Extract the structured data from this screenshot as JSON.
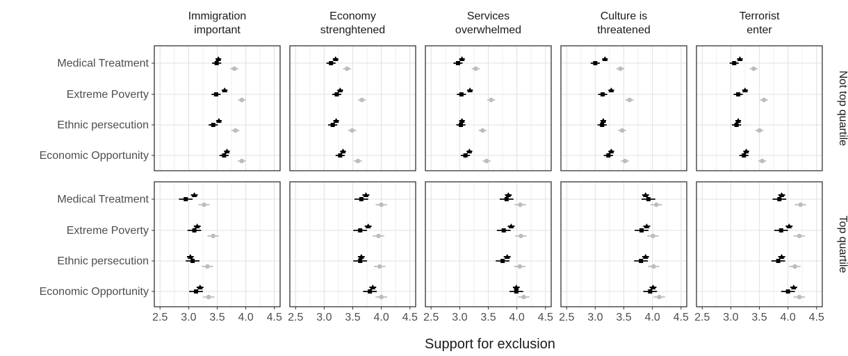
{
  "chart_data": {
    "type": "forest-dot",
    "xlabel": "Support for exclusion",
    "xlim": [
      2.4,
      4.6
    ],
    "xticks": [
      "2.5",
      "3.0",
      "3.5",
      "4.0",
      "4.5"
    ],
    "grid": true,
    "facet_columns": [
      {
        "label": "Immigration\nimportant"
      },
      {
        "label": "Economy\nstrenghtened"
      },
      {
        "label": "Services\noverwhelmed"
      },
      {
        "label": "Culture is\nthreatened"
      },
      {
        "label": "Terrorist\nenter"
      }
    ],
    "facet_rows": [
      {
        "label": "Not top quartile"
      },
      {
        "label": "Top quartile"
      }
    ],
    "categories": [
      "Medical Treatment",
      "Extreme Poverty",
      "Ethnic persecution",
      "Economic Opportunity"
    ],
    "series": [
      {
        "key": "triangle",
        "marker": "triangle",
        "color": "#000000"
      },
      {
        "key": "square",
        "marker": "square",
        "color": "#000000"
      },
      {
        "key": "circle",
        "marker": "circle",
        "color": "#bdbdbd"
      }
    ],
    "panels": [
      [
        [
          {
            "tri": [
              3.52,
              3.47,
              3.57
            ],
            "sq": [
              3.49,
              3.41,
              3.57
            ],
            "circ": [
              3.8,
              3.73,
              3.87
            ]
          },
          {
            "tri": [
              3.63,
              3.58,
              3.68
            ],
            "sq": [
              3.48,
              3.4,
              3.56
            ],
            "circ": [
              3.93,
              3.86,
              4.0
            ]
          },
          {
            "tri": [
              3.53,
              3.48,
              3.58
            ],
            "sq": [
              3.43,
              3.35,
              3.51
            ],
            "circ": [
              3.82,
              3.75,
              3.89
            ]
          },
          {
            "tri": [
              3.67,
              3.62,
              3.72
            ],
            "sq": [
              3.62,
              3.54,
              3.7
            ],
            "circ": [
              3.93,
              3.86,
              4.0
            ]
          }
        ],
        [
          {
            "tri": [
              3.2,
              3.15,
              3.25
            ],
            "sq": [
              3.12,
              3.04,
              3.2
            ],
            "circ": [
              3.4,
              3.33,
              3.47
            ]
          },
          {
            "tri": [
              3.28,
              3.23,
              3.33
            ],
            "sq": [
              3.22,
              3.14,
              3.3
            ],
            "circ": [
              3.66,
              3.59,
              3.73
            ]
          },
          {
            "tri": [
              3.21,
              3.16,
              3.26
            ],
            "sq": [
              3.15,
              3.07,
              3.23
            ],
            "circ": [
              3.49,
              3.42,
              3.56
            ]
          },
          {
            "tri": [
              3.33,
              3.28,
              3.38
            ],
            "sq": [
              3.28,
              3.2,
              3.36
            ],
            "circ": [
              3.59,
              3.52,
              3.66
            ]
          }
        ],
        [
          {
            "tri": [
              3.04,
              2.99,
              3.09
            ],
            "sq": [
              2.97,
              2.89,
              3.05
            ],
            "circ": [
              3.28,
              3.21,
              3.35
            ]
          },
          {
            "tri": [
              3.18,
              3.13,
              3.23
            ],
            "sq": [
              3.03,
              2.95,
              3.11
            ],
            "circ": [
              3.55,
              3.48,
              3.62
            ]
          },
          {
            "tri": [
              3.04,
              2.99,
              3.09
            ],
            "sq": [
              3.02,
              2.94,
              3.1
            ],
            "circ": [
              3.4,
              3.33,
              3.47
            ]
          },
          {
            "tri": [
              3.17,
              3.12,
              3.22
            ],
            "sq": [
              3.1,
              3.02,
              3.18
            ],
            "circ": [
              3.47,
              3.4,
              3.54
            ]
          }
        ],
        [
          {
            "tri": [
              3.17,
              3.12,
              3.22
            ],
            "sq": [
              3.0,
              2.92,
              3.08
            ],
            "circ": [
              3.44,
              3.37,
              3.51
            ]
          },
          {
            "tri": [
              3.28,
              3.23,
              3.33
            ],
            "sq": [
              3.13,
              3.05,
              3.21
            ],
            "circ": [
              3.6,
              3.53,
              3.67
            ]
          },
          {
            "tri": [
              3.14,
              3.09,
              3.19
            ],
            "sq": [
              3.12,
              3.04,
              3.2
            ],
            "circ": [
              3.47,
              3.4,
              3.54
            ]
          },
          {
            "tri": [
              3.28,
              3.23,
              3.33
            ],
            "sq": [
              3.23,
              3.15,
              3.31
            ],
            "circ": [
              3.52,
              3.45,
              3.59
            ]
          }
        ],
        [
          {
            "tri": [
              3.16,
              3.11,
              3.21
            ],
            "sq": [
              3.06,
              2.98,
              3.14
            ],
            "circ": [
              3.4,
              3.33,
              3.47
            ]
          },
          {
            "tri": [
              3.25,
              3.2,
              3.3
            ],
            "sq": [
              3.13,
              3.05,
              3.21
            ],
            "circ": [
              3.58,
              3.51,
              3.65
            ]
          },
          {
            "tri": [
              3.13,
              3.08,
              3.18
            ],
            "sq": [
              3.1,
              3.02,
              3.18
            ],
            "circ": [
              3.5,
              3.43,
              3.57
            ]
          },
          {
            "tri": [
              3.27,
              3.22,
              3.32
            ],
            "sq": [
              3.23,
              3.15,
              3.31
            ],
            "circ": [
              3.55,
              3.48,
              3.62
            ]
          }
        ]
      ],
      [
        [
          {
            "tri": [
              3.1,
              3.04,
              3.16
            ],
            "sq": [
              2.95,
              2.83,
              3.07
            ],
            "circ": [
              3.27,
              3.17,
              3.37
            ]
          },
          {
            "tri": [
              3.15,
              3.09,
              3.21
            ],
            "sq": [
              3.1,
              2.98,
              3.22
            ],
            "circ": [
              3.43,
              3.33,
              3.53
            ]
          },
          {
            "tri": [
              3.03,
              2.97,
              3.09
            ],
            "sq": [
              3.07,
              2.95,
              3.19
            ],
            "circ": [
              3.33,
              3.23,
              3.43
            ]
          },
          {
            "tri": [
              3.2,
              3.14,
              3.26
            ],
            "sq": [
              3.13,
              3.01,
              3.25
            ],
            "circ": [
              3.35,
              3.25,
              3.45
            ]
          }
        ],
        [
          {
            "tri": [
              3.73,
              3.67,
              3.79
            ],
            "sq": [
              3.65,
              3.53,
              3.77
            ],
            "circ": [
              4.0,
              3.9,
              4.1
            ]
          },
          {
            "tri": [
              3.77,
              3.71,
              3.83
            ],
            "sq": [
              3.63,
              3.51,
              3.75
            ],
            "circ": [
              3.95,
              3.85,
              4.05
            ]
          },
          {
            "tri": [
              3.65,
              3.59,
              3.71
            ],
            "sq": [
              3.63,
              3.51,
              3.75
            ],
            "circ": [
              3.97,
              3.87,
              4.07
            ]
          },
          {
            "tri": [
              3.85,
              3.79,
              3.91
            ],
            "sq": [
              3.8,
              3.68,
              3.92
            ],
            "circ": [
              4.0,
              3.9,
              4.1
            ]
          }
        ],
        [
          {
            "tri": [
              3.85,
              3.79,
              3.91
            ],
            "sq": [
              3.82,
              3.7,
              3.94
            ],
            "circ": [
              4.06,
              3.96,
              4.16
            ]
          },
          {
            "tri": [
              3.9,
              3.84,
              3.96
            ],
            "sq": [
              3.77,
              3.65,
              3.89
            ],
            "circ": [
              4.07,
              3.97,
              4.17
            ]
          },
          {
            "tri": [
              3.83,
              3.77,
              3.89
            ],
            "sq": [
              3.75,
              3.63,
              3.87
            ],
            "circ": [
              4.05,
              3.95,
              4.15
            ]
          },
          {
            "tri": [
              3.99,
              3.93,
              4.05
            ],
            "sq": [
              3.99,
              3.87,
              4.11
            ],
            "circ": [
              4.12,
              4.02,
              4.22
            ]
          }
        ],
        [
          {
            "tri": [
              3.88,
              3.82,
              3.94
            ],
            "sq": [
              3.93,
              3.81,
              4.05
            ],
            "circ": [
              4.07,
              3.97,
              4.17
            ]
          },
          {
            "tri": [
              3.9,
              3.84,
              3.96
            ],
            "sq": [
              3.81,
              3.69,
              3.93
            ],
            "circ": [
              4.01,
              3.91,
              4.11
            ]
          },
          {
            "tri": [
              3.88,
              3.82,
              3.94
            ],
            "sq": [
              3.8,
              3.68,
              3.92
            ],
            "circ": [
              4.02,
              3.92,
              4.12
            ]
          },
          {
            "tri": [
              4.01,
              3.95,
              4.07
            ],
            "sq": [
              3.96,
              3.84,
              4.08
            ],
            "circ": [
              4.12,
              4.02,
              4.22
            ]
          }
        ],
        [
          {
            "tri": [
              3.89,
              3.83,
              3.95
            ],
            "sq": [
              3.85,
              3.73,
              3.97
            ],
            "circ": [
              4.22,
              4.12,
              4.32
            ]
          },
          {
            "tri": [
              4.02,
              3.96,
              4.08
            ],
            "sq": [
              3.88,
              3.76,
              4.0
            ],
            "circ": [
              4.2,
              4.1,
              4.3
            ]
          },
          {
            "tri": [
              3.89,
              3.83,
              3.95
            ],
            "sq": [
              3.83,
              3.71,
              3.95
            ],
            "circ": [
              4.12,
              4.02,
              4.22
            ]
          },
          {
            "tri": [
              4.1,
              4.04,
              4.16
            ],
            "sq": [
              4.0,
              3.88,
              4.12
            ],
            "circ": [
              4.2,
              4.1,
              4.3
            ]
          }
        ]
      ]
    ]
  }
}
